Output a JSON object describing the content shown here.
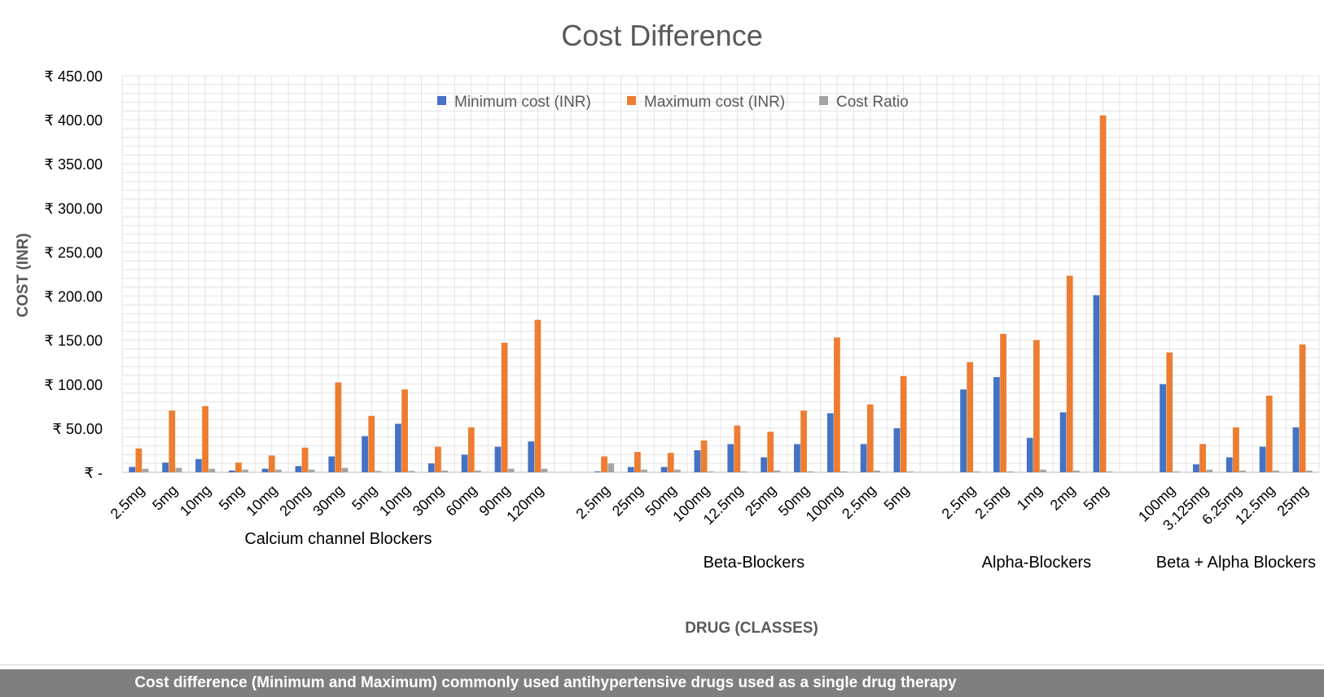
{
  "chart_data": {
    "type": "bar",
    "title": "Cost Difference",
    "xlabel": "DRUG (CLASSES)",
    "ylabel": "COST (INR)",
    "ylim": [
      0,
      450
    ],
    "y_ticks": [
      {
        "value": 0,
        "label": "₹ -"
      },
      {
        "value": 50,
        "label": "₹ 50.00"
      },
      {
        "value": 100,
        "label": "₹ 100.00"
      },
      {
        "value": 150,
        "label": "₹ 150.00"
      },
      {
        "value": 200,
        "label": "₹ 200.00"
      },
      {
        "value": 250,
        "label": "₹ 250.00"
      },
      {
        "value": 300,
        "label": "₹ 300.00"
      },
      {
        "value": 350,
        "label": "₹ 350.00"
      },
      {
        "value": 400,
        "label": "₹ 400.00"
      },
      {
        "value": 450,
        "label": "₹ 450.00"
      }
    ],
    "grid": true,
    "legend_position": "top",
    "groups": [
      {
        "name": "Calcium channel Blockers",
        "categories": [
          "2.5mg",
          "5mg",
          "10mg",
          "5mg",
          "10mg",
          "20mg",
          "30mg",
          "5mg",
          "10mg",
          "30mg",
          "60mg",
          "90mg",
          "120mg"
        ]
      },
      {
        "name": "Beta-Blockers",
        "categories": [
          "2.5mg",
          "25mg",
          "50mg",
          "100mg",
          "12.5mg",
          "25mg",
          "50mg",
          "100mg",
          "2.5mg",
          "5mg"
        ]
      },
      {
        "name": "Alpha-Blockers",
        "categories": [
          "2.5mg",
          "2.5mg",
          "1mg",
          "2mg",
          "5mg"
        ]
      },
      {
        "name": "Beta + Alpha Blockers",
        "categories": [
          "100mg",
          "3.125mg",
          "6.25mg",
          "12.5mg",
          "25mg"
        ]
      }
    ],
    "series": [
      {
        "name": "Minimum cost (INR)",
        "color": "#4472c4",
        "values": [
          6,
          11,
          15,
          2,
          4,
          7,
          18,
          41,
          55,
          10,
          20,
          29,
          35,
          1,
          6,
          6,
          25,
          32,
          17,
          32,
          67,
          32,
          50,
          94,
          108,
          39,
          68,
          201,
          100,
          9,
          17,
          29,
          51
        ]
      },
      {
        "name": "Maximum cost (INR)",
        "color": "#ed7d31",
        "values": [
          27,
          70,
          75,
          11,
          19,
          28,
          102,
          64,
          94,
          29,
          51,
          147,
          173,
          18,
          23,
          22,
          36,
          53,
          46,
          70,
          153,
          77,
          109,
          125,
          157,
          150,
          223,
          405,
          136,
          32,
          51,
          87,
          145
        ]
      },
      {
        "name": "Cost Ratio",
        "color": "#a5a5a5",
        "values": [
          4,
          5,
          4,
          3,
          3,
          3,
          5,
          1.5,
          1.5,
          2,
          2,
          4,
          4,
          10,
          3,
          3,
          1,
          1,
          2,
          1,
          1,
          2,
          1,
          1,
          1,
          3,
          2,
          1,
          1,
          3,
          2,
          2,
          2
        ]
      }
    ]
  },
  "caption": "Cost difference (Minimum and Maximum) commonly used antihypertensive drugs used as a single drug therapy"
}
